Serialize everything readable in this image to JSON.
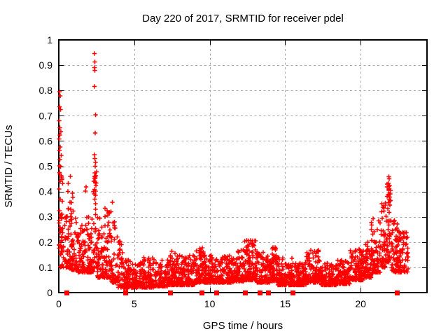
{
  "window": {
    "background": "#ffffff"
  },
  "chart_data": {
    "type": "scatter",
    "title": "Day 220 of 2017, SRMTID for receiver pdel",
    "xlabel": "GPS time / hours",
    "ylabel": "SRMTID / TECUs",
    "xlim": [
      0,
      24.4
    ],
    "ylim": [
      0,
      1
    ],
    "xticks": [
      0,
      5,
      10,
      15,
      20
    ],
    "xtick_labels": [
      "0",
      "5",
      "10",
      "15",
      "20"
    ],
    "yticks": [
      0,
      0.1,
      0.2,
      0.3,
      0.4,
      0.5,
      0.6,
      0.7,
      0.8,
      0.9,
      1
    ],
    "ytick_labels": [
      "0",
      "0.1",
      "0.2",
      "0.3",
      "0.4",
      "0.5",
      "0.6",
      "0.7",
      "0.8",
      "0.9",
      "1"
    ],
    "grid": true,
    "legend": "none",
    "marker": "plus",
    "marker_color": "#ff0000",
    "grid_color": "#a8a8a8",
    "axis_color": "#000000",
    "seed": 20170808,
    "band_format": [
      "t_start_hours",
      "t_end_hours",
      "n_points",
      "y_min_TECUs",
      "y_max_TECUs",
      "low_bias_exponent"
    ],
    "density_bands": [
      [
        0.02,
        0.28,
        30,
        0.16,
        0.48,
        1.6
      ],
      [
        0.05,
        0.45,
        25,
        0.1,
        0.3,
        1.8
      ],
      [
        0.45,
        0.75,
        35,
        0.1,
        0.34,
        2.0
      ],
      [
        0.6,
        0.95,
        12,
        0.3,
        0.48,
        1.5
      ],
      [
        0.75,
        1.25,
        60,
        0.09,
        0.3,
        2.2
      ],
      [
        1.25,
        1.8,
        70,
        0.08,
        0.27,
        2.2
      ],
      [
        1.8,
        2.3,
        65,
        0.08,
        0.3,
        2.2
      ],
      [
        2.3,
        2.52,
        30,
        0.1,
        0.55,
        1.3
      ],
      [
        2.52,
        3.0,
        60,
        0.06,
        0.3,
        2.0
      ],
      [
        3.0,
        3.45,
        55,
        0.06,
        0.34,
        1.8
      ],
      [
        3.45,
        3.8,
        40,
        0.04,
        0.3,
        2.2
      ],
      [
        3.8,
        4.25,
        50,
        0.02,
        0.23,
        2.0
      ],
      [
        4.25,
        4.8,
        60,
        0.015,
        0.13,
        1.8
      ],
      [
        4.8,
        5.6,
        95,
        0.02,
        0.12,
        2.2
      ],
      [
        5.6,
        6.4,
        95,
        0.02,
        0.145,
        2.2
      ],
      [
        6.4,
        7.2,
        95,
        0.025,
        0.13,
        2.2
      ],
      [
        7.2,
        8.0,
        95,
        0.03,
        0.16,
        2.3
      ],
      [
        8.0,
        9.0,
        115,
        0.03,
        0.15,
        2.3
      ],
      [
        9.0,
        9.6,
        75,
        0.04,
        0.18,
        2.2
      ],
      [
        9.6,
        10.6,
        120,
        0.04,
        0.15,
        2.2
      ],
      [
        10.6,
        11.6,
        120,
        0.04,
        0.145,
        2.2
      ],
      [
        11.6,
        12.3,
        85,
        0.045,
        0.17,
        2.2
      ],
      [
        12.3,
        13.1,
        100,
        0.05,
        0.21,
        2.3
      ],
      [
        13.1,
        14.0,
        110,
        0.04,
        0.16,
        2.3
      ],
      [
        14.0,
        14.5,
        60,
        0.045,
        0.18,
        2.2
      ],
      [
        14.5,
        15.5,
        120,
        0.03,
        0.14,
        2.3
      ],
      [
        15.5,
        16.4,
        110,
        0.03,
        0.12,
        2.2
      ],
      [
        16.4,
        17.3,
        105,
        0.04,
        0.17,
        2.3
      ],
      [
        17.3,
        18.4,
        130,
        0.03,
        0.12,
        2.2
      ],
      [
        18.4,
        19.3,
        105,
        0.035,
        0.13,
        2.2
      ],
      [
        19.3,
        20.2,
        105,
        0.05,
        0.17,
        2.1
      ],
      [
        20.2,
        20.7,
        60,
        0.06,
        0.2,
        1.9
      ],
      [
        20.7,
        21.35,
        75,
        0.08,
        0.3,
        1.9
      ],
      [
        21.35,
        21.7,
        45,
        0.1,
        0.36,
        1.6
      ],
      [
        21.7,
        22.05,
        45,
        0.12,
        0.44,
        1.4
      ],
      [
        22.05,
        22.45,
        45,
        0.08,
        0.29,
        1.7
      ],
      [
        22.45,
        23.15,
        80,
        0.08,
        0.24,
        1.8
      ]
    ],
    "peak_points": [
      [
        0.05,
        0.795
      ],
      [
        0.1,
        0.778
      ],
      [
        0.05,
        0.735
      ],
      [
        0.12,
        0.724
      ],
      [
        0.03,
        0.68
      ],
      [
        0.08,
        0.652
      ],
      [
        0.14,
        0.637
      ],
      [
        0.06,
        0.623
      ],
      [
        0.03,
        0.608
      ],
      [
        0.1,
        0.576
      ],
      [
        0.05,
        0.562
      ],
      [
        0.16,
        0.543
      ],
      [
        0.08,
        0.527
      ],
      [
        0.04,
        0.502
      ],
      [
        0.12,
        0.498
      ],
      [
        0.06,
        0.47
      ],
      [
        0.18,
        0.457
      ],
      [
        0.09,
        0.44
      ],
      [
        1.82,
        0.418
      ],
      [
        1.76,
        0.402
      ],
      [
        2.37,
        0.946
      ],
      [
        2.38,
        0.913
      ],
      [
        2.36,
        0.89
      ],
      [
        2.4,
        0.88
      ],
      [
        2.37,
        0.816
      ],
      [
        2.43,
        0.703
      ],
      [
        2.41,
        0.631
      ],
      [
        2.4,
        0.53
      ],
      [
        2.44,
        0.515
      ],
      [
        2.42,
        0.5
      ],
      [
        2.38,
        0.474
      ],
      [
        2.45,
        0.462
      ],
      [
        2.41,
        0.452
      ],
      [
        2.47,
        0.424
      ],
      [
        2.36,
        0.408
      ],
      [
        2.43,
        0.385
      ],
      [
        2.39,
        0.37
      ],
      [
        3.55,
        0.358
      ],
      [
        3.45,
        0.32
      ],
      [
        7.5,
        0.163
      ],
      [
        9.35,
        0.175
      ],
      [
        12.5,
        0.185
      ],
      [
        12.8,
        0.195
      ],
      [
        12.85,
        0.205
      ],
      [
        12.9,
        0.19
      ],
      [
        14.2,
        0.178
      ],
      [
        16.95,
        0.163
      ],
      [
        17.05,
        0.155
      ],
      [
        19.9,
        0.172
      ],
      [
        20.35,
        0.19
      ],
      [
        21.87,
        0.458
      ],
      [
        21.9,
        0.45
      ],
      [
        21.85,
        0.432
      ],
      [
        21.92,
        0.424
      ],
      [
        21.88,
        0.405
      ],
      [
        21.83,
        0.388
      ],
      [
        21.95,
        0.378
      ],
      [
        21.9,
        0.368
      ],
      [
        21.86,
        0.356
      ],
      [
        21.93,
        0.346
      ],
      [
        21.8,
        0.332
      ],
      [
        22.25,
        0.286
      ],
      [
        22.2,
        0.272
      ],
      [
        22.55,
        0.242
      ],
      [
        22.65,
        0.232
      ]
    ],
    "axis_markers": {
      "marker": "filled-square",
      "color": "#ff0000",
      "y": 0,
      "x_hours": [
        0.55,
        4.45,
        7.4,
        9.5,
        10.45,
        12.35,
        13.35,
        13.9,
        15.5,
        22.45
      ]
    }
  }
}
